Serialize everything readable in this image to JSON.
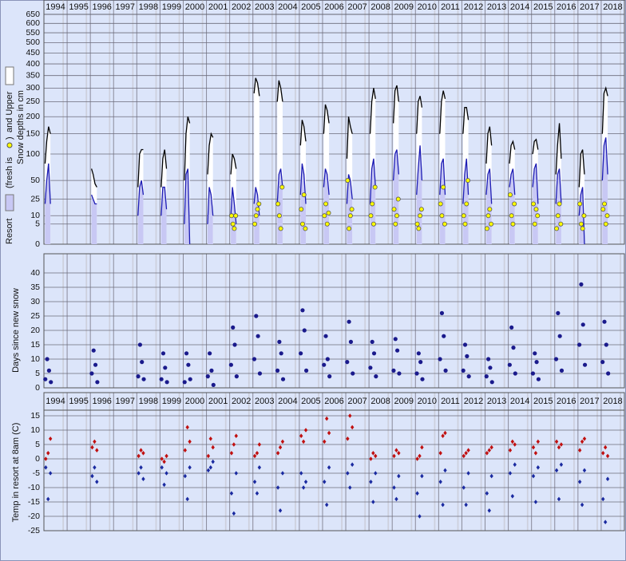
{
  "chart_data": [
    {
      "type": "line",
      "yscale": "sqrt",
      "y_label": [
        "Resort",
        "(fresh is",
        ")",
        "and Upper",
        "Snow depths in cm"
      ],
      "xlim": [
        1993.5,
        2018.5
      ],
      "xticks": [
        1994,
        1995,
        1996,
        1997,
        1998,
        1999,
        2000,
        2001,
        2002,
        2003,
        2004,
        2005,
        2006,
        2007,
        2008,
        2009,
        2010,
        2011,
        2012,
        2013,
        2014,
        2015,
        2016,
        2017,
        2018
      ],
      "ylim": [
        0,
        650
      ],
      "yticks": [
        0,
        5,
        10,
        25,
        50,
        100,
        150,
        200,
        250,
        300,
        350,
        400,
        450,
        500,
        550,
        600,
        650
      ],
      "grid": true,
      "x": [
        1993.55,
        1993.62,
        1993.7,
        1993.78,
        1993.85,
        1995.55,
        1995.62,
        1995.7,
        1995.78,
        1995.85,
        1997.55,
        1997.62,
        1997.7,
        1997.78,
        1997.85,
        1998.55,
        1998.62,
        1998.7,
        1998.78,
        1998.85,
        1999.55,
        1999.62,
        1999.7,
        1999.78,
        1999.85,
        2000.55,
        2000.62,
        2000.7,
        2000.78,
        2000.85,
        2001.55,
        2001.62,
        2001.7,
        2001.78,
        2001.85,
        2002.55,
        2002.62,
        2002.7,
        2002.78,
        2002.85,
        2003.55,
        2003.62,
        2003.7,
        2003.78,
        2003.85,
        2004.55,
        2004.62,
        2004.7,
        2004.78,
        2004.85,
        2005.55,
        2005.62,
        2005.7,
        2005.78,
        2005.85,
        2006.55,
        2006.62,
        2006.7,
        2006.78,
        2006.85,
        2007.55,
        2007.62,
        2007.7,
        2007.78,
        2007.85,
        2008.55,
        2008.62,
        2008.7,
        2008.78,
        2008.85,
        2009.55,
        2009.62,
        2009.7,
        2009.78,
        2009.85,
        2010.55,
        2010.62,
        2010.7,
        2010.78,
        2010.85,
        2011.55,
        2011.62,
        2011.7,
        2011.78,
        2011.85,
        2012.55,
        2012.62,
        2012.7,
        2012.78,
        2012.85,
        2013.55,
        2013.62,
        2013.7,
        2013.78,
        2013.85,
        2014.55,
        2014.62,
        2014.7,
        2014.78,
        2014.85,
        2015.55,
        2015.62,
        2015.7,
        2015.78,
        2015.85,
        2016.55,
        2016.62,
        2016.7,
        2016.78,
        2016.85,
        2017.55,
        2017.62,
        2017.7,
        2017.78,
        2017.85
      ],
      "series": [
        {
          "style": "area",
          "color": "#000000",
          "area_color": "#ffffff",
          "values": [
            80,
            130,
            170,
            150,
            null,
            70,
            60,
            45,
            40,
            null,
            40,
            100,
            110,
            110,
            null,
            40,
            90,
            110,
            70,
            null,
            50,
            150,
            200,
            180,
            null,
            60,
            120,
            150,
            140,
            null,
            60,
            100,
            90,
            70,
            null,
            280,
            340,
            320,
            270,
            null,
            250,
            330,
            300,
            250,
            null,
            120,
            190,
            170,
            130,
            null,
            150,
            240,
            220,
            180,
            null,
            90,
            200,
            170,
            150,
            null,
            150,
            250,
            300,
            260,
            null,
            180,
            290,
            310,
            250,
            null,
            150,
            250,
            270,
            230,
            null,
            150,
            250,
            290,
            260,
            null,
            150,
            230,
            230,
            190,
            null,
            80,
            150,
            170,
            120,
            null,
            80,
            120,
            130,
            110,
            null,
            100,
            130,
            135,
            110,
            null,
            60,
            120,
            180,
            90,
            null,
            40,
            100,
            110,
            60,
            null,
            150,
            280,
            300,
            270,
            null
          ]
        },
        {
          "style": "area",
          "color": "#1c1cb4",
          "area_color": "#c8c8f4",
          "values": [
            20,
            50,
            80,
            20,
            null,
            30,
            25,
            20,
            20,
            null,
            10,
            40,
            50,
            30,
            null,
            10,
            40,
            40,
            15,
            null,
            5,
            60,
            70,
            0,
            null,
            5,
            40,
            30,
            10,
            null,
            10,
            40,
            20,
            5,
            null,
            20,
            40,
            30,
            10,
            null,
            20,
            60,
            70,
            40,
            null,
            30,
            80,
            60,
            20,
            null,
            40,
            70,
            60,
            30,
            null,
            20,
            60,
            50,
            25,
            null,
            20,
            70,
            90,
            40,
            null,
            50,
            100,
            110,
            60,
            null,
            30,
            70,
            120,
            50,
            null,
            30,
            80,
            90,
            30,
            null,
            20,
            60,
            90,
            30,
            null,
            30,
            60,
            70,
            20,
            null,
            40,
            60,
            70,
            30,
            null,
            40,
            70,
            80,
            20,
            null,
            20,
            60,
            70,
            20,
            null,
            10,
            30,
            40,
            0,
            null,
            50,
            120,
            140,
            60,
            null
          ]
        },
        {
          "style": "points",
          "color": "#ffff00",
          "x": [
            2001.58,
            2001.64,
            2001.7,
            2001.76,
            2002.58,
            2002.64,
            2002.7,
            2002.76,
            2003.58,
            2003.64,
            2003.7,
            2003.76,
            2004.58,
            2004.64,
            2004.7,
            2004.76,
            2005.58,
            2005.64,
            2005.7,
            2005.76,
            2006.58,
            2006.64,
            2006.7,
            2006.76,
            2007.58,
            2007.64,
            2007.7,
            2007.76,
            2008.58,
            2008.64,
            2008.7,
            2008.76,
            2009.58,
            2009.64,
            2009.7,
            2009.76,
            2010.58,
            2010.64,
            2010.7,
            2010.76,
            2011.58,
            2011.64,
            2011.7,
            2011.76,
            2012.58,
            2012.64,
            2012.7,
            2012.76,
            2013.58,
            2013.64,
            2013.7,
            2013.76,
            2014.58,
            2014.64,
            2014.7,
            2014.76,
            2015.58,
            2015.64,
            2015.7,
            2015.76,
            2016.58,
            2016.64,
            2016.7,
            2016.76,
            2017.58,
            2017.64,
            2017.7,
            2017.76
          ],
          "values": [
            10,
            5,
            3,
            10,
            5,
            10,
            15,
            20,
            20,
            10,
            3,
            40,
            15,
            5,
            30,
            3,
            10,
            20,
            5,
            12,
            50,
            3,
            10,
            15,
            10,
            20,
            5,
            40,
            15,
            5,
            10,
            25,
            5,
            3,
            10,
            15,
            20,
            10,
            40,
            5,
            10,
            5,
            20,
            50,
            3,
            10,
            15,
            5,
            30,
            10,
            5,
            20,
            20,
            5,
            15,
            10,
            3,
            10,
            20,
            5,
            20,
            5,
            3,
            10,
            15,
            20,
            5,
            10
          ]
        }
      ]
    },
    {
      "type": "scatter",
      "y_label": "Days since new snow",
      "xlim": [
        1993.5,
        2018.5
      ],
      "ylim": [
        0,
        40
      ],
      "yticks": [
        0,
        5,
        10,
        15,
        20,
        25,
        30,
        35,
        40
      ],
      "grid": true,
      "x": [
        1993.56,
        1993.64,
        1993.72,
        1993.8,
        1995.56,
        1995.64,
        1995.72,
        1995.8,
        1997.56,
        1997.64,
        1997.72,
        1997.8,
        1998.56,
        1998.64,
        1998.72,
        1998.8,
        1999.56,
        1999.64,
        1999.72,
        1999.8,
        2000.56,
        2000.64,
        2000.72,
        2000.8,
        2001.56,
        2001.64,
        2001.72,
        2001.8,
        2002.56,
        2002.64,
        2002.72,
        2002.8,
        2003.56,
        2003.64,
        2003.72,
        2003.8,
        2004.56,
        2004.64,
        2004.72,
        2004.8,
        2005.56,
        2005.64,
        2005.72,
        2005.8,
        2006.56,
        2006.64,
        2006.72,
        2006.8,
        2007.56,
        2007.64,
        2007.72,
        2007.8,
        2008.56,
        2008.64,
        2008.72,
        2008.8,
        2009.56,
        2009.64,
        2009.72,
        2009.8,
        2010.56,
        2010.64,
        2010.72,
        2010.8,
        2011.56,
        2011.64,
        2011.72,
        2011.8,
        2012.56,
        2012.64,
        2012.72,
        2012.8,
        2013.56,
        2013.64,
        2013.72,
        2013.8,
        2014.56,
        2014.64,
        2014.72,
        2014.8,
        2015.56,
        2015.64,
        2015.72,
        2015.8,
        2016.56,
        2016.64,
        2016.72,
        2016.8,
        2017.56,
        2017.64,
        2017.72,
        2017.8
      ],
      "series": [
        {
          "style": "points",
          "color": "#1a1a8c",
          "values": [
            3,
            10,
            6,
            2,
            5,
            13,
            8,
            2,
            4,
            15,
            9,
            3,
            3,
            12,
            7,
            2,
            2,
            12,
            8,
            3,
            4,
            12,
            6,
            1,
            8,
            21,
            15,
            4,
            10,
            25,
            18,
            5,
            6,
            16,
            12,
            3,
            12,
            27,
            20,
            6,
            8,
            18,
            10,
            4,
            9,
            23,
            16,
            5,
            7,
            16,
            12,
            4,
            6,
            17,
            13,
            5,
            5,
            12,
            9,
            3,
            10,
            26,
            18,
            6,
            6,
            15,
            11,
            4,
            4,
            10,
            7,
            2,
            8,
            21,
            14,
            5,
            5,
            12,
            9,
            3,
            10,
            26,
            18,
            6,
            15,
            36,
            22,
            8,
            9,
            23,
            15,
            5
          ]
        }
      ]
    },
    {
      "type": "scatter",
      "y_label": "Temp in resort at 8am (C)",
      "xlim": [
        1993.5,
        2018.5
      ],
      "xticks": [
        1994,
        1995,
        1996,
        1997,
        1998,
        1999,
        2000,
        2001,
        2002,
        2003,
        2004,
        2005,
        2006,
        2007,
        2008,
        2009,
        2010,
        2011,
        2012,
        2013,
        2014,
        2015,
        2016,
        2017,
        2018
      ],
      "ylim": [
        -25,
        15
      ],
      "yticks": [
        -25,
        -20,
        -15,
        -10,
        -5,
        0,
        5,
        10,
        15
      ],
      "grid": true,
      "x": [
        1993.58,
        1993.68,
        1993.78,
        1995.58,
        1995.68,
        1995.78,
        1997.58,
        1997.68,
        1997.78,
        1998.58,
        1998.68,
        1998.78,
        1999.58,
        1999.68,
        1999.78,
        2000.58,
        2000.68,
        2000.78,
        2001.58,
        2001.68,
        2001.78,
        2002.58,
        2002.68,
        2002.78,
        2003.58,
        2003.68,
        2003.78,
        2004.58,
        2004.68,
        2004.78,
        2005.58,
        2005.68,
        2005.78,
        2006.58,
        2006.68,
        2006.78,
        2007.58,
        2007.68,
        2007.78,
        2008.58,
        2008.68,
        2008.78,
        2009.58,
        2009.68,
        2009.78,
        2010.58,
        2010.68,
        2010.78,
        2011.58,
        2011.68,
        2011.78,
        2012.58,
        2012.68,
        2012.78,
        2013.58,
        2013.68,
        2013.78,
        2014.58,
        2014.68,
        2014.78,
        2015.58,
        2015.68,
        2015.78,
        2016.58,
        2016.68,
        2016.78,
        2017.58,
        2017.68,
        2017.78
      ],
      "series": [
        {
          "style": "points",
          "color": "#c01010",
          "values": [
            0,
            2,
            7,
            4,
            6,
            3,
            1,
            3,
            2,
            0,
            -1,
            1,
            3,
            11,
            6,
            1,
            7,
            4,
            2,
            5,
            8,
            1,
            2,
            5,
            2,
            4,
            6,
            8,
            6,
            10,
            6,
            14,
            9,
            7,
            15,
            11,
            0,
            2,
            1,
            1,
            3,
            2,
            0,
            1,
            4,
            2,
            8,
            9,
            1,
            2,
            3,
            2,
            3,
            4,
            3,
            6,
            5,
            4,
            2,
            6,
            6,
            4,
            5,
            3,
            6,
            7,
            2,
            4,
            1
          ]
        },
        {
          "style": "points",
          "color": "#1a2aa0",
          "values": [
            -3,
            -14,
            -5,
            -6,
            -3,
            -8,
            -5,
            -3,
            -7,
            -3,
            -9,
            -5,
            -6,
            -14,
            -3,
            -4,
            -3,
            -1,
            -12,
            -19,
            -5,
            -8,
            -12,
            -3,
            -10,
            -18,
            -5,
            -5,
            -10,
            -8,
            -8,
            -16,
            -3,
            -5,
            -10,
            -2,
            -8,
            -15,
            -5,
            -10,
            -14,
            -6,
            -12,
            -20,
            -6,
            -8,
            -16,
            -4,
            -10,
            -16,
            -5,
            -12,
            -18,
            -6,
            -5,
            -13,
            -2,
            -6,
            -15,
            -3,
            -4,
            -14,
            -2,
            -8,
            -16,
            -4,
            -14,
            -22,
            -7
          ]
        }
      ]
    }
  ]
}
